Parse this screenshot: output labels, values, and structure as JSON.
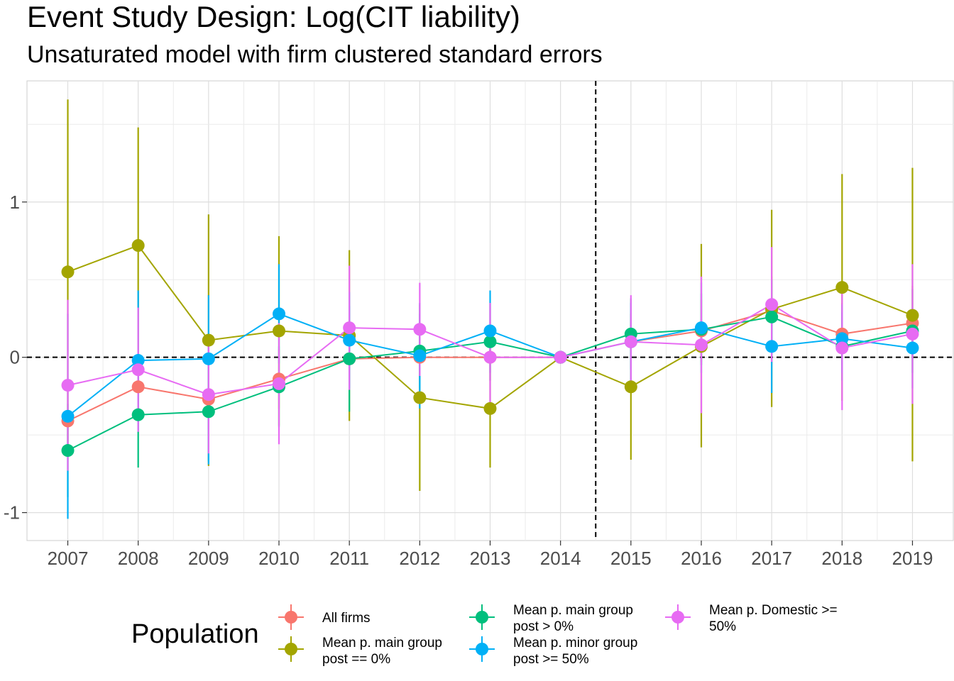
{
  "chart_data": {
    "type": "line",
    "title": "Event Study Design: Log(CIT liability)",
    "subtitle": "Unsaturated model with firm clustered standard errors",
    "xlabel": "",
    "ylabel": "",
    "x": [
      2007,
      2008,
      2009,
      2010,
      2011,
      2012,
      2013,
      2014,
      2015,
      2016,
      2017,
      2018,
      2019
    ],
    "x_tick_labels": [
      "2007",
      "2008",
      "2009",
      "2010",
      "2011",
      "2012",
      "2013",
      "2014",
      "2015",
      "2016",
      "2017",
      "2018",
      "2019"
    ],
    "y_ticks": [
      -1,
      0,
      1
    ],
    "y_tick_labels": [
      "-1",
      "0",
      "1"
    ],
    "ylim": [
      -1.18,
      1.78
    ],
    "xlim": [
      2006.42,
      2019.58
    ],
    "grid": true,
    "reference_lines": {
      "hline": 0,
      "vline": 2014.5
    },
    "legend": {
      "title": "Population",
      "position": "bottom"
    },
    "series": [
      {
        "name": "All firms",
        "color": "#F8766D",
        "y": [
          -0.41,
          -0.19,
          -0.27,
          -0.14,
          -0.01,
          0.0,
          0.0,
          0.0,
          0.1,
          0.17,
          0.3,
          0.15,
          0.22
        ],
        "lower": [
          -0.6,
          -0.38,
          -0.46,
          -0.33,
          -0.2,
          -0.12,
          -0.15,
          0.0,
          -0.08,
          -0.03,
          0.08,
          -0.05,
          -0.02
        ],
        "upper": [
          -0.22,
          0.0,
          -0.08,
          0.05,
          0.18,
          0.12,
          0.15,
          0.0,
          0.28,
          0.37,
          0.52,
          0.35,
          0.46
        ]
      },
      {
        "name": "Mean p. main group post == 0%",
        "legend_lines": [
          "Mean p. main group",
          "post == 0%"
        ],
        "color": "#A3A500",
        "y": [
          0.55,
          0.72,
          0.11,
          0.17,
          0.14,
          -0.26,
          -0.33,
          0.0,
          -0.19,
          0.07,
          0.31,
          0.45,
          0.27
        ],
        "lower": [
          -0.56,
          -0.04,
          -0.7,
          -0.44,
          -0.41,
          -0.86,
          -0.71,
          0.0,
          -0.66,
          -0.58,
          -0.32,
          -0.28,
          -0.67
        ],
        "upper": [
          1.66,
          1.48,
          0.92,
          0.78,
          0.69,
          0.34,
          0.05,
          0.0,
          0.28,
          0.73,
          0.95,
          1.18,
          1.22
        ]
      },
      {
        "name": "Mean p. main group post > 0%",
        "legend_lines": [
          "Mean p. main group",
          "post > 0%"
        ],
        "color": "#00BF7D",
        "y": [
          -0.6,
          -0.37,
          -0.35,
          -0.19,
          -0.01,
          0.04,
          0.1,
          0.0,
          0.15,
          0.18,
          0.26,
          0.07,
          0.17
        ],
        "lower": [
          -0.9,
          -0.71,
          -0.67,
          -0.45,
          -0.35,
          -0.2,
          -0.15,
          0.0,
          -0.08,
          -0.05,
          0.02,
          -0.15,
          -0.1
        ],
        "upper": [
          -0.3,
          -0.03,
          -0.03,
          0.07,
          0.33,
          0.28,
          0.35,
          0.0,
          0.38,
          0.41,
          0.5,
          0.29,
          0.44
        ]
      },
      {
        "name": "Mean p. minor group post >= 50%",
        "legend_lines": [
          "Mean p. minor group",
          "post >= 50%"
        ],
        "color": "#00B0F6",
        "y": [
          -0.38,
          -0.02,
          -0.01,
          0.28,
          0.11,
          0.01,
          0.17,
          0.0,
          0.1,
          0.19,
          0.07,
          0.12,
          0.06
        ],
        "lower": [
          -1.04,
          -0.47,
          -0.69,
          -0.04,
          -0.2,
          -0.33,
          -0.1,
          0.0,
          -0.15,
          -0.1,
          -0.23,
          -0.1,
          -0.2
        ],
        "upper": [
          0.28,
          0.43,
          0.4,
          0.6,
          0.42,
          0.35,
          0.43,
          0.0,
          0.35,
          0.48,
          0.37,
          0.34,
          0.32
        ]
      },
      {
        "name": "Mean p. Domestic >= 50%",
        "legend_lines": [
          "Mean p. Domestic >=",
          "50%"
        ],
        "color": "#E76BF3",
        "y": [
          -0.18,
          -0.08,
          -0.24,
          -0.17,
          0.19,
          0.18,
          0.0,
          0.0,
          0.1,
          0.08,
          0.34,
          0.06,
          0.15
        ],
        "lower": [
          -0.73,
          -0.48,
          -0.62,
          -0.56,
          -0.21,
          -0.12,
          -0.35,
          0.0,
          -0.2,
          -0.36,
          -0.03,
          -0.34,
          -0.3
        ],
        "upper": [
          0.37,
          0.32,
          0.14,
          0.22,
          0.59,
          0.48,
          0.35,
          0.0,
          0.4,
          0.52,
          0.71,
          0.46,
          0.6
        ]
      }
    ]
  }
}
